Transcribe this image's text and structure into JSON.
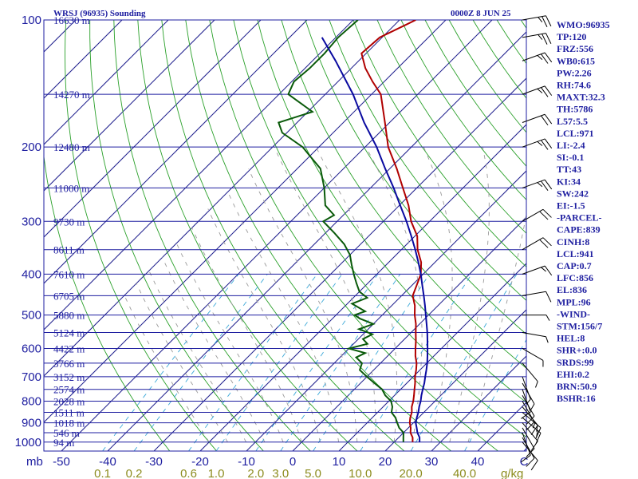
{
  "header": {
    "station": "WRSJ (96935) Sounding",
    "time": "0000Z  8 JUN 25"
  },
  "chart_data": {
    "type": "line",
    "title": "WRSJ (96935) Sounding",
    "date_label": "0000Z  8 JUN 25",
    "pressure_label": "mb",
    "mixing_ratio_unit": "g/kg",
    "pressure_levels": [
      {
        "p": 100,
        "label": "100"
      },
      {
        "p": 200,
        "label": "200"
      },
      {
        "p": 300,
        "label": "300"
      },
      {
        "p": 400,
        "label": "400"
      },
      {
        "p": 500,
        "label": "500"
      },
      {
        "p": 600,
        "label": "600"
      },
      {
        "p": 700,
        "label": "700"
      },
      {
        "p": 800,
        "label": "800"
      },
      {
        "p": 900,
        "label": "900"
      },
      {
        "p": 1000,
        "label": "1000"
      }
    ],
    "height_labels": [
      {
        "p": 100,
        "label": "16630 m"
      },
      {
        "p": 150,
        "label": "14270 m"
      },
      {
        "p": 200,
        "label": "12480 m"
      },
      {
        "p": 250,
        "label": "11000 m"
      },
      {
        "p": 300,
        "label": "9730 m"
      },
      {
        "p": 350,
        "label": "8611 m"
      },
      {
        "p": 400,
        "label": "7610 m"
      },
      {
        "p": 450,
        "label": "6705 m"
      },
      {
        "p": 500,
        "label": "5880 m"
      },
      {
        "p": 550,
        "label": "5124 m"
      },
      {
        "p": 600,
        "label": "4422 m"
      },
      {
        "p": 650,
        "label": "3766 m"
      },
      {
        "p": 700,
        "label": "3152 m"
      },
      {
        "p": 750,
        "label": "2574 m"
      },
      {
        "p": 800,
        "label": "2028 m"
      },
      {
        "p": 850,
        "label": "1511 m"
      },
      {
        "p": 900,
        "label": "1018 m"
      },
      {
        "p": 950,
        "label": "546 m"
      },
      {
        "p": 1000,
        "label": "94 m"
      }
    ],
    "temperature_ticks": [
      "-50",
      "-40",
      "-30",
      "-20",
      "-10",
      "0",
      "10",
      "20",
      "30",
      "40",
      "C"
    ],
    "temperature_values": [
      -50,
      -40,
      -30,
      -20,
      -10,
      0,
      10,
      20,
      30,
      40
    ],
    "mixing_ratio_labels": [
      "0.1",
      "0.2",
      "0.6",
      "1.0",
      "2.0",
      "3.0",
      "5.0",
      "10.0",
      "20.0",
      "40.0"
    ],
    "mixing_ratio_values": [
      0.1,
      0.2,
      0.6,
      1.0,
      2.0,
      3.0,
      5.0,
      10.0,
      20.0,
      40.0
    ],
    "series": [
      {
        "key": "temperature",
        "color": "#b00000",
        "points": [
          [
            1000,
            24.0
          ],
          [
            975,
            23.0
          ],
          [
            950,
            21.5
          ],
          [
            925,
            20.5
          ],
          [
            900,
            19.2
          ],
          [
            875,
            18.2
          ],
          [
            850,
            17.4
          ],
          [
            825,
            16.2
          ],
          [
            800,
            15.3
          ],
          [
            775,
            14.2
          ],
          [
            750,
            13.0
          ],
          [
            725,
            11.8
          ],
          [
            700,
            10.4
          ],
          [
            675,
            9.2
          ],
          [
            650,
            7.8
          ],
          [
            625,
            6.0
          ],
          [
            600,
            4.4
          ],
          [
            575,
            2.8
          ],
          [
            550,
            1.0
          ],
          [
            525,
            -0.8
          ],
          [
            500,
            -3.0
          ],
          [
            475,
            -5.0
          ],
          [
            450,
            -7.6
          ],
          [
            425,
            -9.0
          ],
          [
            400,
            -10.5
          ],
          [
            375,
            -13.0
          ],
          [
            350,
            -16.5
          ],
          [
            325,
            -19.5
          ],
          [
            300,
            -24.0
          ],
          [
            275,
            -28.0
          ],
          [
            250,
            -33.0
          ],
          [
            225,
            -38.5
          ],
          [
            200,
            -45.0
          ],
          [
            175,
            -51.0
          ],
          [
            150,
            -58.0
          ],
          [
            140,
            -62.5
          ],
          [
            130,
            -67.0
          ],
          [
            120,
            -71.0
          ],
          [
            110,
            -70.5
          ],
          [
            100,
            -66.5
          ]
        ]
      },
      {
        "key": "dewpoint",
        "color": "#0a5a0a",
        "points": [
          [
            1000,
            22.0
          ],
          [
            975,
            21.0
          ],
          [
            950,
            20.0
          ],
          [
            925,
            18.0
          ],
          [
            900,
            16.5
          ],
          [
            875,
            15.0
          ],
          [
            850,
            13.0
          ],
          [
            825,
            12.0
          ],
          [
            800,
            10.5
          ],
          [
            775,
            8.0
          ],
          [
            750,
            6.0
          ],
          [
            725,
            3.0
          ],
          [
            700,
            0.0
          ],
          [
            675,
            -3.0
          ],
          [
            650,
            -4.0
          ],
          [
            630,
            -6.5
          ],
          [
            615,
            -5.5
          ],
          [
            600,
            -10.0
          ],
          [
            585,
            -7.0
          ],
          [
            570,
            -9.0
          ],
          [
            555,
            -8.0
          ],
          [
            540,
            -12.0
          ],
          [
            525,
            -10.0
          ],
          [
            510,
            -14.0
          ],
          [
            500,
            -16.0
          ],
          [
            490,
            -14.5
          ],
          [
            470,
            -19.0
          ],
          [
            455,
            -17.0
          ],
          [
            440,
            -20.0
          ],
          [
            420,
            -22.5
          ],
          [
            400,
            -25.0
          ],
          [
            380,
            -27.5
          ],
          [
            360,
            -30.0
          ],
          [
            340,
            -33.5
          ],
          [
            320,
            -38.0
          ],
          [
            300,
            -43.0
          ],
          [
            290,
            -42.0
          ],
          [
            275,
            -46.0
          ],
          [
            250,
            -50.0
          ],
          [
            225,
            -55.0
          ],
          [
            210,
            -60.0
          ],
          [
            200,
            -63.5
          ],
          [
            185,
            -71.0
          ],
          [
            175,
            -74.0
          ],
          [
            165,
            -69.0
          ],
          [
            150,
            -78.0
          ],
          [
            140,
            -79.5
          ],
          [
            130,
            -79.0
          ],
          [
            120,
            -79.0
          ],
          [
            110,
            -79.5
          ],
          [
            100,
            -79.0
          ]
        ]
      },
      {
        "key": "parcel",
        "color": "#0a0aa0",
        "points": [
          [
            1000,
            25.5
          ],
          [
            975,
            24.5
          ],
          [
            950,
            23.0
          ],
          [
            925,
            21.8
          ],
          [
            900,
            20.5
          ],
          [
            875,
            19.6
          ],
          [
            850,
            18.8
          ],
          [
            825,
            17.8
          ],
          [
            800,
            16.9
          ],
          [
            775,
            15.8
          ],
          [
            750,
            14.8
          ],
          [
            725,
            13.8
          ],
          [
            700,
            12.6
          ],
          [
            675,
            11.4
          ],
          [
            650,
            10.1
          ],
          [
            625,
            8.6
          ],
          [
            600,
            7.0
          ],
          [
            575,
            5.3
          ],
          [
            550,
            3.5
          ],
          [
            525,
            1.5
          ],
          [
            500,
            -0.6
          ],
          [
            475,
            -2.8
          ],
          [
            450,
            -5.2
          ],
          [
            425,
            -7.8
          ],
          [
            400,
            -10.5
          ],
          [
            375,
            -13.6
          ],
          [
            350,
            -17.0
          ],
          [
            325,
            -20.8
          ],
          [
            300,
            -25.0
          ],
          [
            275,
            -29.8
          ],
          [
            250,
            -35.0
          ],
          [
            225,
            -41.0
          ],
          [
            200,
            -47.5
          ],
          [
            175,
            -55.5
          ],
          [
            150,
            -64.0
          ],
          [
            125,
            -75.0
          ],
          [
            110,
            -83.0
          ]
        ]
      }
    ],
    "wind_barbs": [
      {
        "p": 1000,
        "dir": 140,
        "spd": 10
      },
      {
        "p": 975,
        "dir": 150,
        "spd": 10
      },
      {
        "p": 950,
        "dir": 160,
        "spd": 10
      },
      {
        "p": 925,
        "dir": 150,
        "spd": 10
      },
      {
        "p": 900,
        "dir": 140,
        "spd": 10
      },
      {
        "p": 875,
        "dir": 130,
        "spd": 15
      },
      {
        "p": 850,
        "dir": 130,
        "spd": 15
      },
      {
        "p": 825,
        "dir": 140,
        "spd": 15
      },
      {
        "p": 800,
        "dir": 150,
        "spd": 10
      },
      {
        "p": 775,
        "dir": 150,
        "spd": 10
      },
      {
        "p": 750,
        "dir": 160,
        "spd": 10
      },
      {
        "p": 725,
        "dir": 150,
        "spd": 5
      },
      {
        "p": 700,
        "dir": 160,
        "spd": 5
      },
      {
        "p": 650,
        "dir": 140,
        "spd": 5
      },
      {
        "p": 600,
        "dir": 120,
        "spd": 5
      },
      {
        "p": 550,
        "dir": 100,
        "spd": 5
      },
      {
        "p": 500,
        "dir": 90,
        "spd": 5
      },
      {
        "p": 450,
        "dir": 80,
        "spd": 10
      },
      {
        "p": 400,
        "dir": 70,
        "spd": 15
      },
      {
        "p": 350,
        "dir": 60,
        "spd": 20
      },
      {
        "p": 300,
        "dir": 60,
        "spd": 20
      },
      {
        "p": 250,
        "dir": 70,
        "spd": 25
      },
      {
        "p": 200,
        "dir": 70,
        "spd": 25
      },
      {
        "p": 175,
        "dir": 70,
        "spd": 20
      },
      {
        "p": 150,
        "dir": 70,
        "spd": 25
      },
      {
        "p": 125,
        "dir": 70,
        "spd": 25
      },
      {
        "p": 110,
        "dir": 80,
        "spd": 25
      },
      {
        "p": 100,
        "dir": 80,
        "spd": 25
      }
    ],
    "indices": [
      "WMO:96935",
      "TP:120",
      "FRZ:556",
      "WB0:615",
      "PW:2.26",
      "RH:74.6",
      "MAXT:32.3",
      "TH:5786",
      "L57:5.5",
      "LCL:971",
      "LI:-2.4",
      "SI:-0.1",
      "TT:43",
      "KI:34",
      "SW:242",
      "EI:-1.5",
      "-PARCEL-",
      "CAPE:839",
      "CINH:8",
      "LCL:941",
      "CAP:0.7",
      "LFC:856",
      "EL:836",
      "MPL:96",
      "-WIND-",
      "STM:156/7",
      "HEL:8",
      "SHR+:0.0",
      "SRDS:99",
      "EHI:0.2",
      "BRN:50.9",
      "BSHR:16"
    ]
  }
}
